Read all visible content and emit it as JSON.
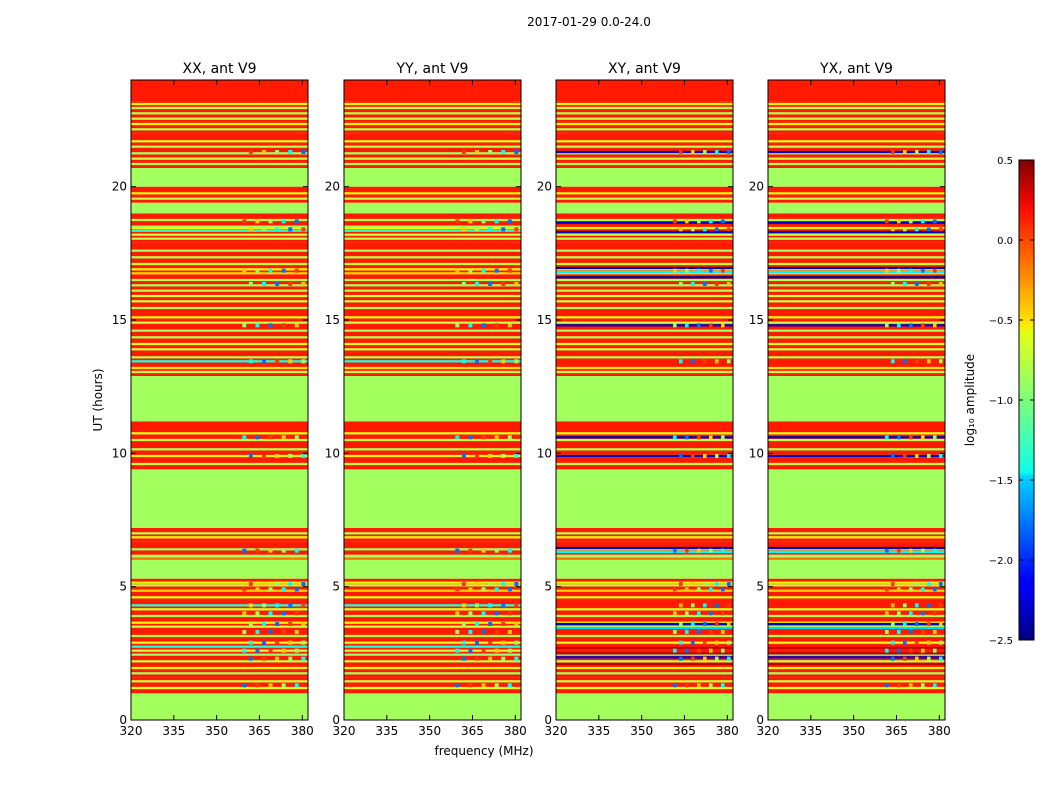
{
  "suptitle": "2017-01-29 0.0-24.0",
  "chart_data": {
    "type": "heatmap",
    "xlabel": "frequency (MHz)",
    "ylabel": "UT (hours)",
    "xlim": [
      320,
      382
    ],
    "ylim": [
      0,
      24
    ],
    "xticks": [
      320,
      335,
      350,
      365,
      380
    ],
    "xtick_labels": [
      "320",
      "335",
      "350",
      "365",
      "380"
    ],
    "yticks": [
      0,
      5,
      10,
      15,
      20
    ],
    "ytick_labels": [
      "0",
      "5",
      "10",
      "15",
      "20"
    ],
    "colorbar": {
      "label": "log₁₀ amplitude",
      "range": [
        -2.5,
        0.5
      ],
      "ticks": [
        0.5,
        0.0,
        -0.5,
        -1.0,
        -1.5,
        -2.0,
        -2.5
      ],
      "tick_labels": [
        "0.5",
        "0.0",
        "−0.5",
        "−1.0",
        "−1.5",
        "−2.0",
        "−2.5"
      ],
      "colormap": "jet"
    },
    "panels": [
      {
        "title": "XX, ant V9",
        "rfi_band": [
          359,
          382
        ],
        "extra_lines": [
          {
            "y": 18.35,
            "value": -1.2
          },
          {
            "y": 18.5,
            "value": -0.9
          },
          {
            "y": 13.45,
            "value": -1.3
          },
          {
            "y": 4.3,
            "value": -1.25
          },
          {
            "y": 2.75,
            "value": -1.3
          },
          {
            "y": 2.6,
            "value": -0.8
          }
        ]
      },
      {
        "title": "YY, ant V9",
        "rfi_band": [
          359,
          382
        ],
        "extra_lines": [
          {
            "y": 18.35,
            "value": -1.2
          },
          {
            "y": 18.5,
            "value": -0.9
          },
          {
            "y": 13.45,
            "value": -1.3
          },
          {
            "y": 4.3,
            "value": -1.25
          },
          {
            "y": 2.75,
            "value": -1.3
          },
          {
            "y": 2.6,
            "value": -0.8
          }
        ]
      },
      {
        "title": "XY, ant V9",
        "rfi_band": [
          361,
          382
        ],
        "extra_lines": [
          {
            "y": 21.3,
            "value": -2.3
          },
          {
            "y": 18.65,
            "value": -2.3
          },
          {
            "y": 18.3,
            "value": -2.3
          },
          {
            "y": 16.95,
            "value": -2.4
          },
          {
            "y": 16.8,
            "value": -1.4
          },
          {
            "y": 16.6,
            "value": -2.4
          },
          {
            "y": 14.8,
            "value": -2.3
          },
          {
            "y": 10.6,
            "value": -2.3
          },
          {
            "y": 9.9,
            "value": -2.3
          },
          {
            "y": 6.45,
            "value": -2.4
          },
          {
            "y": 6.3,
            "value": -1.4
          },
          {
            "y": 3.6,
            "value": -2.3
          },
          {
            "y": 3.45,
            "value": -1.5
          },
          {
            "y": 2.7,
            "value": 0.3
          },
          {
            "y": 2.5,
            "value": 0.3
          },
          {
            "y": 2.35,
            "value": -2.3
          },
          {
            "y": 2.1,
            "value": 0.3
          }
        ]
      },
      {
        "title": "YX, ant V9",
        "rfi_band": [
          361,
          382
        ],
        "extra_lines": [
          {
            "y": 21.3,
            "value": -2.3
          },
          {
            "y": 18.65,
            "value": -2.3
          },
          {
            "y": 18.3,
            "value": -2.3
          },
          {
            "y": 16.95,
            "value": -2.4
          },
          {
            "y": 16.8,
            "value": -1.4
          },
          {
            "y": 16.6,
            "value": -2.4
          },
          {
            "y": 14.8,
            "value": -2.3
          },
          {
            "y": 10.6,
            "value": -2.3
          },
          {
            "y": 9.9,
            "value": -2.3
          },
          {
            "y": 6.45,
            "value": -2.4
          },
          {
            "y": 6.3,
            "value": -1.4
          },
          {
            "y": 3.6,
            "value": -2.3
          },
          {
            "y": 3.45,
            "value": -1.5
          },
          {
            "y": 2.7,
            "value": 0.3
          },
          {
            "y": 2.5,
            "value": 0.3
          },
          {
            "y": 2.35,
            "value": -2.3
          },
          {
            "y": 2.1,
            "value": 0.3
          }
        ]
      }
    ],
    "blocks": [
      {
        "y0": 0.0,
        "y1": 1.0,
        "value": -0.9
      },
      {
        "y0": 1.0,
        "y1": 1.6,
        "value": 0.05
      },
      {
        "y0": 1.6,
        "y1": 3.0,
        "value": 0.05
      },
      {
        "y0": 3.0,
        "y1": 4.5,
        "value": 0.05
      },
      {
        "y0": 4.5,
        "y1": 5.3,
        "value": 0.05
      },
      {
        "y0": 5.3,
        "y1": 6.2,
        "value": -0.9
      },
      {
        "y0": 6.2,
        "y1": 6.7,
        "value": 0.05
      },
      {
        "y0": 6.7,
        "y1": 7.2,
        "value": 0.05
      },
      {
        "y0": 7.2,
        "y1": 9.4,
        "value": -0.9
      },
      {
        "y0": 9.4,
        "y1": 11.2,
        "value": 0.05
      },
      {
        "y0": 11.2,
        "y1": 12.9,
        "value": -0.9
      },
      {
        "y0": 12.9,
        "y1": 17.9,
        "value": 0.05
      },
      {
        "y0": 17.9,
        "y1": 19.0,
        "value": 0.05
      },
      {
        "y0": 19.0,
        "y1": 19.4,
        "value": -0.9
      },
      {
        "y0": 19.4,
        "y1": 20.0,
        "value": 0.05
      },
      {
        "y0": 20.0,
        "y1": 20.7,
        "value": -0.9
      },
      {
        "y0": 20.7,
        "y1": 22.0,
        "value": 0.05
      },
      {
        "y0": 22.0,
        "y1": 23.2,
        "value": 0.05
      },
      {
        "y0": 23.2,
        "y1": 24.0,
        "value": 0.05
      }
    ],
    "lines": [
      {
        "y": 1.2,
        "value": -0.7
      },
      {
        "y": 1.45,
        "value": -0.8
      },
      {
        "y": 1.75,
        "value": -0.9
      },
      {
        "y": 1.95,
        "value": -0.6
      },
      {
        "y": 2.2,
        "value": -0.8
      },
      {
        "y": 2.45,
        "value": -0.95
      },
      {
        "y": 2.9,
        "value": -0.7
      },
      {
        "y": 3.15,
        "value": -0.85
      },
      {
        "y": 3.5,
        "value": -0.8
      },
      {
        "y": 3.65,
        "value": -0.6
      },
      {
        "y": 3.9,
        "value": -0.85
      },
      {
        "y": 4.15,
        "value": -0.75
      },
      {
        "y": 4.6,
        "value": -0.7
      },
      {
        "y": 4.85,
        "value": -0.5
      },
      {
        "y": 5.05,
        "value": -0.8
      },
      {
        "y": 5.15,
        "value": -0.6
      },
      {
        "y": 6.05,
        "value": -0.2
      },
      {
        "y": 6.4,
        "value": -0.9
      },
      {
        "y": 6.85,
        "value": -0.6
      },
      {
        "y": 7.0,
        "value": -0.85
      },
      {
        "y": 9.6,
        "value": -0.8
      },
      {
        "y": 9.9,
        "value": -0.6
      },
      {
        "y": 10.15,
        "value": -0.85
      },
      {
        "y": 10.5,
        "value": -0.8
      },
      {
        "y": 10.75,
        "value": -0.7
      },
      {
        "y": 13.05,
        "value": -0.8
      },
      {
        "y": 13.2,
        "value": -0.55
      },
      {
        "y": 13.6,
        "value": -0.85
      },
      {
        "y": 13.9,
        "value": -0.8
      },
      {
        "y": 14.1,
        "value": -0.7
      },
      {
        "y": 14.35,
        "value": -0.85
      },
      {
        "y": 14.6,
        "value": -0.9
      },
      {
        "y": 14.9,
        "value": -0.8
      },
      {
        "y": 15.1,
        "value": -0.6
      },
      {
        "y": 15.45,
        "value": -0.85
      },
      {
        "y": 15.7,
        "value": -0.8
      },
      {
        "y": 15.9,
        "value": -0.75
      },
      {
        "y": 16.1,
        "value": -0.85
      },
      {
        "y": 16.3,
        "value": -0.9
      },
      {
        "y": 16.5,
        "value": -0.85
      },
      {
        "y": 16.75,
        "value": -0.5
      },
      {
        "y": 16.9,
        "value": -0.6
      },
      {
        "y": 17.1,
        "value": -0.8
      },
      {
        "y": 17.35,
        "value": -0.85
      },
      {
        "y": 17.6,
        "value": -0.9
      },
      {
        "y": 18.05,
        "value": -0.85
      },
      {
        "y": 18.2,
        "value": -0.8
      },
      {
        "y": 18.45,
        "value": -0.6
      },
      {
        "y": 18.75,
        "value": -0.85
      },
      {
        "y": 19.55,
        "value": -0.8
      },
      {
        "y": 19.75,
        "value": -0.6
      },
      {
        "y": 20.85,
        "value": -0.85
      },
      {
        "y": 21.05,
        "value": -0.8
      },
      {
        "y": 21.25,
        "value": -0.9
      },
      {
        "y": 21.5,
        "value": -0.85
      },
      {
        "y": 21.7,
        "value": -0.7
      },
      {
        "y": 22.15,
        "value": -0.85
      },
      {
        "y": 22.35,
        "value": -0.6
      },
      {
        "y": 22.55,
        "value": -0.8
      },
      {
        "y": 22.75,
        "value": -0.85
      },
      {
        "y": 22.95,
        "value": -0.8
      },
      {
        "y": 23.1,
        "value": -0.6
      }
    ]
  }
}
